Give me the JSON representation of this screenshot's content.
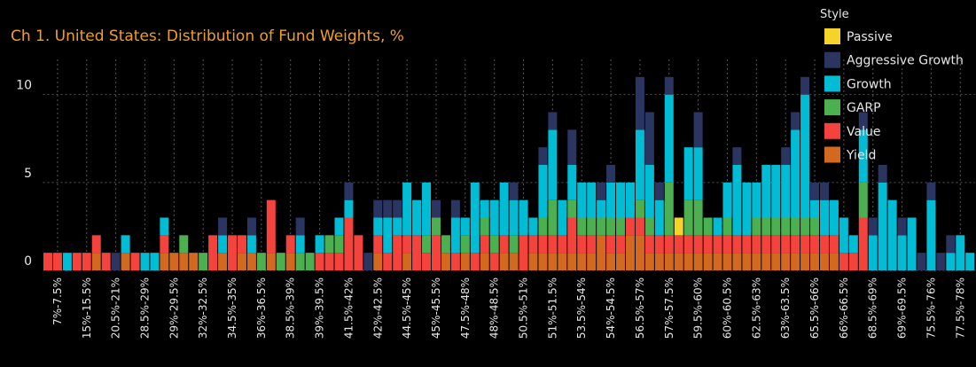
{
  "chart_data": {
    "type": "stacked_bar",
    "title": "Ch 1. United States:  Distribution of Fund Weights, %",
    "legend_title": "Style",
    "legend_position": "top-right",
    "grid": true,
    "ylim": [
      0,
      12
    ],
    "yticks": [
      0,
      5,
      10
    ],
    "categories": [
      null,
      "7%-7.5%",
      null,
      null,
      "15%-15.5%",
      null,
      null,
      "20.5%-21%",
      null,
      null,
      "28.5%-29%",
      null,
      null,
      "29%-29.5%",
      null,
      null,
      "32%-32.5%",
      null,
      null,
      "34.5%-35%",
      null,
      null,
      "36%-36.5%",
      null,
      null,
      "38.5%-39%",
      null,
      null,
      "39%-39.5%",
      null,
      null,
      "41.5%-42%",
      null,
      null,
      "42%-42.5%",
      null,
      null,
      "44.5%-45%",
      null,
      null,
      "45%-45.5%",
      null,
      null,
      "47.5%-48%",
      null,
      null,
      "48%-48.5%",
      null,
      null,
      "50.5%-51%",
      null,
      null,
      "51%-51.5%",
      null,
      null,
      "53.5%-54%",
      null,
      null,
      "54%-54.5%",
      null,
      null,
      "56.5%-57%",
      null,
      null,
      "57%-57.5%",
      null,
      null,
      "59.5%-60%",
      null,
      null,
      "60%-60.5%",
      null,
      null,
      "62.5%-63%",
      null,
      null,
      "63%-63.5%",
      null,
      null,
      "65.5%-66%",
      null,
      null,
      "66%-66.5%",
      null,
      null,
      "68.5%-69%",
      null,
      null,
      "69%-69.5%",
      null,
      null,
      "75.5%-76%",
      null,
      null,
      "77.5%-78%",
      null
    ],
    "series": [
      {
        "name": "Yield",
        "color": "#d2691e",
        "values": [
          0,
          0,
          0,
          0,
          0,
          1,
          0,
          0,
          1,
          0,
          0,
          0,
          1,
          1,
          1,
          1,
          0,
          0,
          1,
          0,
          1,
          1,
          0,
          1,
          0,
          1,
          0,
          0,
          0,
          0,
          0,
          0,
          0,
          0,
          1,
          0,
          0,
          1,
          0,
          0,
          0,
          1,
          0,
          1,
          0,
          1,
          0,
          1,
          1,
          0,
          1,
          1,
          1,
          1,
          1,
          1,
          1,
          2,
          1,
          1,
          2,
          2,
          1,
          1,
          1,
          1,
          1,
          1,
          1,
          1,
          1,
          1,
          1,
          1,
          1,
          1,
          1,
          1,
          1,
          1,
          1,
          1,
          0,
          0,
          0,
          0,
          0,
          0,
          0,
          0,
          0,
          0,
          0,
          0,
          0,
          0
        ]
      },
      {
        "name": "Value",
        "color": "#f4433c",
        "values": [
          1,
          1,
          0,
          1,
          1,
          1,
          1,
          0,
          0,
          1,
          0,
          0,
          1,
          0,
          0,
          0,
          0,
          2,
          0,
          2,
          1,
          0,
          0,
          3,
          0,
          1,
          0,
          0,
          1,
          1,
          1,
          3,
          2,
          0,
          1,
          1,
          2,
          1,
          2,
          1,
          2,
          0,
          1,
          0,
          1,
          1,
          1,
          1,
          0,
          2,
          1,
          1,
          1,
          1,
          2,
          1,
          1,
          0,
          1,
          1,
          1,
          1,
          1,
          1,
          1,
          1,
          1,
          1,
          1,
          1,
          1,
          1,
          1,
          1,
          1,
          1,
          1,
          1,
          1,
          1,
          1,
          1,
          1,
          1,
          3,
          0,
          0,
          0,
          0,
          0,
          0,
          0,
          0,
          0,
          0,
          0
        ]
      },
      {
        "name": "GARP",
        "color": "#4caf50",
        "values": [
          0,
          0,
          0,
          0,
          0,
          0,
          0,
          0,
          0,
          0,
          0,
          0,
          0,
          0,
          1,
          0,
          1,
          0,
          0,
          0,
          0,
          0,
          1,
          0,
          1,
          0,
          1,
          1,
          0,
          1,
          1,
          0,
          0,
          0,
          0,
          0,
          0,
          0,
          0,
          1,
          1,
          1,
          0,
          1,
          0,
          1,
          1,
          0,
          1,
          0,
          0,
          1,
          2,
          0,
          1,
          1,
          1,
          1,
          1,
          1,
          0,
          1,
          1,
          0,
          3,
          0,
          2,
          2,
          1,
          0,
          1,
          0,
          0,
          1,
          1,
          1,
          1,
          1,
          1,
          1,
          0,
          0,
          0,
          0,
          2,
          0,
          0,
          0,
          0,
          0,
          0,
          0,
          0,
          0,
          0,
          0
        ]
      },
      {
        "name": "Growth",
        "color": "#00bcd4",
        "values": [
          0,
          0,
          1,
          0,
          0,
          0,
          0,
          0,
          1,
          0,
          1,
          1,
          1,
          0,
          0,
          0,
          0,
          0,
          1,
          0,
          0,
          1,
          0,
          0,
          0,
          0,
          1,
          0,
          1,
          0,
          1,
          1,
          0,
          0,
          1,
          2,
          1,
          3,
          2,
          3,
          0,
          0,
          2,
          1,
          4,
          1,
          2,
          3,
          2,
          2,
          1,
          3,
          4,
          2,
          2,
          2,
          2,
          1,
          2,
          2,
          2,
          4,
          3,
          2,
          5,
          0,
          3,
          3,
          0,
          1,
          2,
          4,
          3,
          2,
          3,
          3,
          3,
          5,
          7,
          1,
          2,
          2,
          2,
          1,
          3,
          2,
          5,
          4,
          2,
          3,
          0,
          4,
          0,
          1,
          2,
          1
        ]
      },
      {
        "name": "Aggressive Growth",
        "color": "#2b3561",
        "values": [
          0,
          0,
          0,
          0,
          0,
          0,
          0,
          1,
          0,
          0,
          0,
          0,
          0,
          0,
          0,
          0,
          0,
          0,
          1,
          0,
          0,
          1,
          0,
          0,
          0,
          0,
          1,
          0,
          0,
          0,
          0,
          1,
          0,
          1,
          1,
          1,
          1,
          0,
          0,
          0,
          1,
          0,
          1,
          0,
          0,
          0,
          0,
          0,
          1,
          0,
          0,
          1,
          1,
          0,
          2,
          0,
          0,
          1,
          1,
          0,
          0,
          3,
          3,
          1,
          1,
          0,
          0,
          2,
          0,
          0,
          0,
          1,
          0,
          0,
          0,
          0,
          1,
          1,
          1,
          1,
          1,
          0,
          0,
          0,
          1,
          1,
          1,
          0,
          1,
          0,
          1,
          1,
          1,
          1,
          0,
          0
        ]
      },
      {
        "name": "Passive",
        "color": "#f5d328",
        "values": [
          0,
          0,
          0,
          0,
          0,
          0,
          0,
          0,
          0,
          0,
          0,
          0,
          0,
          0,
          0,
          0,
          0,
          0,
          0,
          0,
          0,
          0,
          0,
          0,
          0,
          0,
          0,
          0,
          0,
          0,
          0,
          0,
          0,
          0,
          0,
          0,
          0,
          0,
          0,
          0,
          0,
          0,
          0,
          0,
          0,
          0,
          0,
          0,
          0,
          0,
          0,
          0,
          0,
          0,
          0,
          0,
          0,
          0,
          0,
          0,
          0,
          0,
          0,
          0,
          0,
          1,
          0,
          0,
          0,
          0,
          0,
          0,
          0,
          0,
          0,
          0,
          0,
          0,
          0,
          0,
          0,
          0,
          0,
          0,
          0,
          0,
          0,
          0,
          0,
          0,
          0,
          0,
          0,
          0,
          0,
          0
        ]
      }
    ]
  }
}
